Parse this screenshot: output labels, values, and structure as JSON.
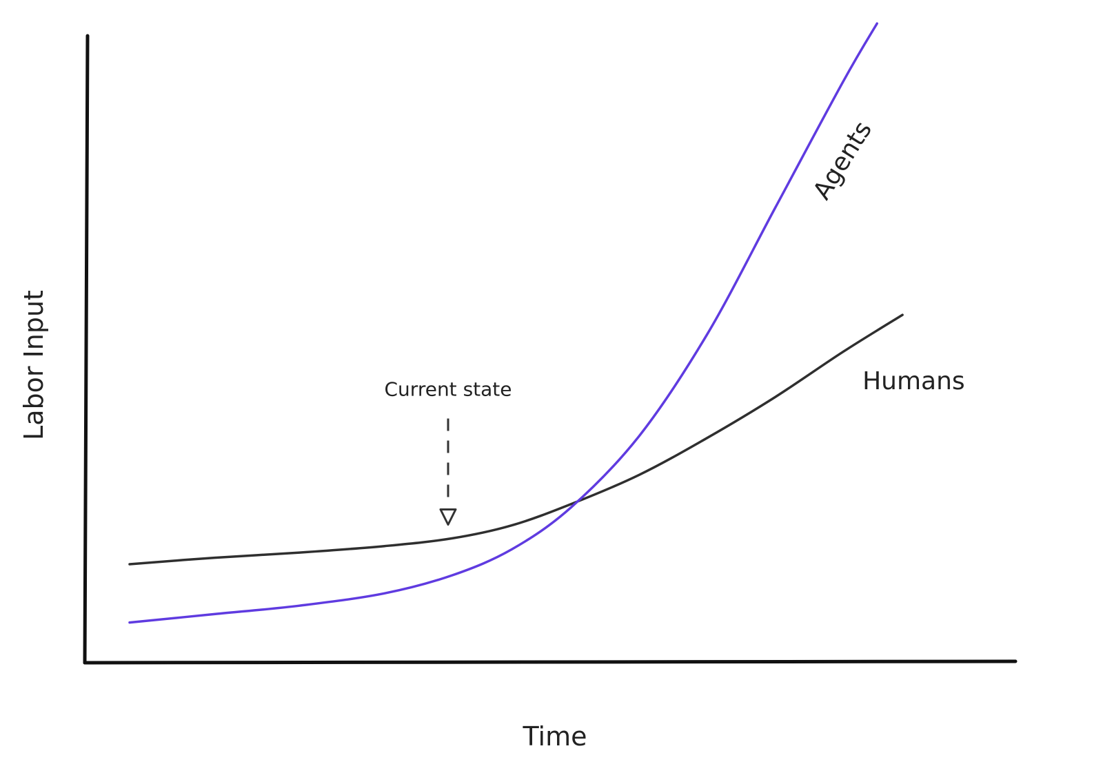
{
  "chart_data": {
    "type": "line",
    "xlabel": "Time",
    "ylabel": "Labor Input",
    "xlim": [
      0,
      100
    ],
    "ylim": [
      0,
      100
    ],
    "grid": false,
    "legend": "inline labels at line ends",
    "series": [
      {
        "name": "Humans",
        "color": "#2f2f2f",
        "points": [
          [
            0,
            15
          ],
          [
            10,
            16
          ],
          [
            20,
            16.8
          ],
          [
            30,
            17.8
          ],
          [
            38,
            19
          ],
          [
            45,
            21
          ],
          [
            52,
            24.3
          ],
          [
            60,
            28.8
          ],
          [
            68,
            34.5
          ],
          [
            76,
            40.8
          ],
          [
            84,
            47.8
          ],
          [
            91,
            53.5
          ]
        ]
      },
      {
        "name": "Agents",
        "color": "#5f3be0",
        "points": [
          [
            0,
            6
          ],
          [
            10,
            7.3
          ],
          [
            20,
            8.6
          ],
          [
            30,
            10.5
          ],
          [
            38,
            13.3
          ],
          [
            45,
            17.3
          ],
          [
            52,
            23.8
          ],
          [
            60,
            34.8
          ],
          [
            68,
            50.5
          ],
          [
            76,
            70
          ],
          [
            84,
            89.5
          ],
          [
            88,
            98.5
          ]
        ]
      }
    ],
    "annotations": [
      {
        "text": "Current state",
        "x": 37.5,
        "y": 19.2
      }
    ]
  }
}
